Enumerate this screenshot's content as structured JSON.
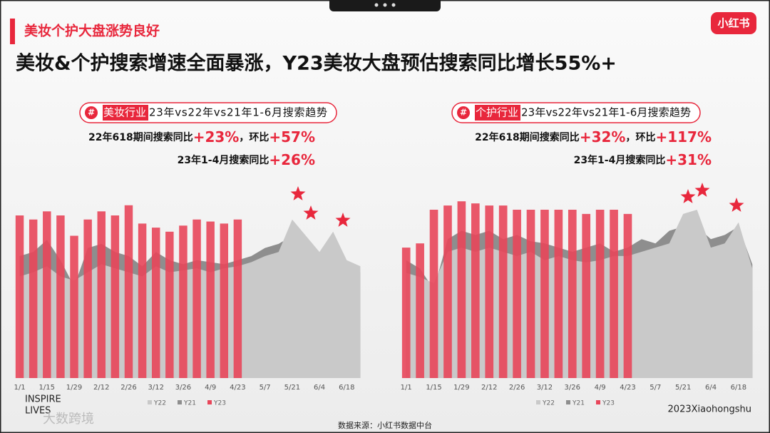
{
  "header": {
    "tag": "美妆个护大盘涨势良好",
    "title": "美妆&个护搜索增速全面暴涨，Y23美妆大盘预估搜索同比增长55%+",
    "logo": "小红书"
  },
  "chart_data": [
    {
      "type": "combo",
      "title_icon": "#",
      "title_highlight": "美妆行业",
      "title": "23年vs22年vs21年1-6月搜索趋势",
      "annotations": [
        [
          "22年618期间搜索同比",
          "+23%",
          "，环比",
          "+57%"
        ],
        [
          "23年1-4月搜索同比",
          "+26%"
        ]
      ],
      "categories": [
        "1/1",
        null,
        "1/15",
        null,
        "1/29",
        null,
        "2/12",
        null,
        "2/26",
        null,
        "3/12",
        null,
        "3/26",
        null,
        "4/9",
        null,
        "4/23",
        null,
        "5/7",
        null,
        "5/21",
        null,
        "6/4",
        null,
        "6/18",
        null
      ],
      "ylim": [
        0,
        100
      ],
      "series": [
        {
          "name": "Y22",
          "kind": "area",
          "color": "#c9c9c9",
          "values": [
            50,
            52,
            55,
            50,
            48,
            52,
            56,
            54,
            52,
            50,
            55,
            52,
            53,
            54,
            52,
            54,
            55,
            57,
            60,
            62,
            78,
            70,
            62,
            72,
            58,
            55
          ]
        },
        {
          "name": "Y21",
          "kind": "area",
          "color": "#8e8e8e",
          "values": [
            60,
            62,
            68,
            58,
            45,
            64,
            66,
            62,
            60,
            55,
            62,
            58,
            56,
            58,
            57,
            56,
            58,
            60,
            64,
            66,
            70,
            62,
            60,
            66,
            55,
            52
          ]
        },
        {
          "name": "Y23",
          "kind": "bar",
          "color": "#e8465a",
          "values": [
            80,
            78,
            82,
            80,
            70,
            78,
            82,
            80,
            85,
            76,
            74,
            72,
            75,
            78,
            77,
            76,
            78,
            null,
            null,
            null,
            null,
            null,
            null,
            null,
            null,
            null
          ]
        }
      ]
    },
    {
      "type": "combo",
      "title_icon": "#",
      "title_highlight": "个护行业",
      "title": "23年vs22年vs21年1-6月搜索趋势",
      "annotations": [
        [
          "22年618期间搜索同比",
          "+32%",
          "，环比",
          "+117%"
        ],
        [
          "23年1-4月搜索同比",
          "+31%"
        ]
      ],
      "categories": [
        "1/1",
        null,
        "1/15",
        null,
        "1/29",
        null,
        "2/12",
        null,
        "2/26",
        null,
        "3/12",
        null,
        "3/26",
        null,
        "4/9",
        null,
        "4/23",
        null,
        "5/7",
        null,
        "5/21",
        null,
        "6/4",
        null,
        "6/18",
        null
      ],
      "ylim": [
        0,
        100
      ],
      "series": [
        {
          "name": "Y22",
          "kind": "area",
          "color": "#c9c9c9",
          "values": [
            50,
            48,
            45,
            60,
            62,
            60,
            62,
            60,
            58,
            60,
            56,
            58,
            56,
            55,
            56,
            58,
            58,
            60,
            62,
            64,
            78,
            80,
            62,
            64,
            74,
            52
          ]
        },
        {
          "name": "Y21",
          "kind": "area",
          "color": "#8e8e8e",
          "values": [
            56,
            52,
            42,
            66,
            70,
            68,
            70,
            66,
            68,
            65,
            64,
            62,
            60,
            62,
            64,
            60,
            62,
            66,
            64,
            70,
            72,
            72,
            66,
            68,
            72,
            54
          ]
        },
        {
          "name": "Y23",
          "kind": "bar",
          "color": "#e8465a",
          "values": [
            62,
            64,
            80,
            82,
            84,
            83,
            82,
            82,
            80,
            80,
            80,
            80,
            80,
            78,
            80,
            80,
            78,
            null,
            null,
            null,
            null,
            null,
            null,
            null,
            null,
            null
          ]
        }
      ]
    }
  ],
  "footer": {
    "brand": [
      "INSPIRE",
      "LIVES"
    ],
    "source": "数据来源：小红书数据中台",
    "copyright": "2023Xiaohongshu",
    "watermark": "大数跨境"
  }
}
